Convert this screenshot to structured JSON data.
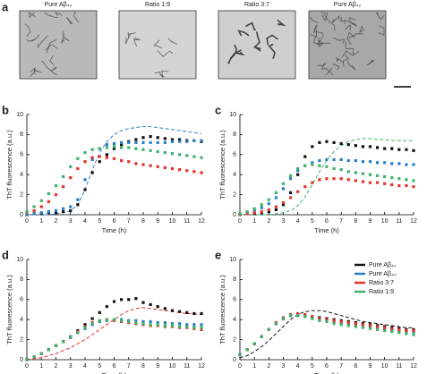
{
  "figure": {
    "panel": "a",
    "images": [
      {
        "label": "Pure Aβ₄₀"
      },
      {
        "label": "Ratio 1:9"
      },
      {
        "label": "Ratio 3:7"
      },
      {
        "label": "Pure Aβ₄₂"
      }
    ]
  },
  "chart_data": [
    {
      "type": "line",
      "panel": "b",
      "xlabel": "Time (h)",
      "ylabel": "ThT fluorescence (a.u.)",
      "xlim": [
        0,
        12
      ],
      "ylim": [
        0,
        10
      ],
      "xticks": [
        0,
        1,
        2,
        3,
        4,
        5,
        6,
        7,
        8,
        9,
        10,
        11,
        12
      ],
      "yticks": [
        0,
        2,
        4,
        6,
        8,
        10
      ],
      "x": [
        0,
        0.5,
        1,
        1.5,
        2,
        2.5,
        3,
        3.5,
        4,
        4.5,
        5,
        5.5,
        6,
        6.5,
        7,
        7.5,
        8,
        8.5,
        9,
        9.5,
        10,
        10.5,
        11,
        11.5,
        12
      ],
      "series": [
        {
          "name": "Pure Aβ₄₂",
          "color": "#111111",
          "values": [
            0,
            0.1,
            0.1,
            0.2,
            0.2,
            0.3,
            0.4,
            1.0,
            2.5,
            4.2,
            5.3,
            6.0,
            6.6,
            7.0,
            7.3,
            7.5,
            7.7,
            7.8,
            7.7,
            7.6,
            7.5,
            7.5,
            7.4,
            7.4,
            7.3
          ]
        },
        {
          "name": "Pure Aβ₄₀",
          "color": "#2a7fc6",
          "values": [
            0,
            0.1,
            0.2,
            0.3,
            0.4,
            0.6,
            0.8,
            1.5,
            3.5,
            5.5,
            6.6,
            7.0,
            7.1,
            7.2,
            7.2,
            7.2,
            7.2,
            7.2,
            7.2,
            7.2,
            7.3,
            7.3,
            7.3,
            7.4,
            7.4
          ]
        },
        {
          "name": "Ratio 3:7",
          "color": "#e8322b",
          "values": [
            0.2,
            0.4,
            0.8,
            1.3,
            2.0,
            2.8,
            3.7,
            4.6,
            5.3,
            5.7,
            5.8,
            5.7,
            5.6,
            5.4,
            5.3,
            5.1,
            5.0,
            4.9,
            4.8,
            4.7,
            4.6,
            4.5,
            4.4,
            4.3,
            4.2
          ]
        },
        {
          "name": "Ratio 1:9",
          "color": "#3db36a",
          "values": [
            0.3,
            0.8,
            1.4,
            2.1,
            2.9,
            3.8,
            4.8,
            5.6,
            6.2,
            6.5,
            6.6,
            6.7,
            6.8,
            6.7,
            6.7,
            6.6,
            6.5,
            6.4,
            6.3,
            6.2,
            6.1,
            6.0,
            5.9,
            5.8,
            5.7
          ]
        },
        {
          "color": "#2a7fc6",
          "style": "dashed",
          "values": [
            0,
            0,
            0,
            0,
            0.1,
            0.2,
            0.4,
            1.0,
            2.5,
            4.5,
            6.2,
            7.3,
            8.0,
            8.4,
            8.6,
            8.7,
            8.8,
            8.8,
            8.7,
            8.6,
            8.5,
            8.4,
            8.3,
            8.2,
            8.1
          ]
        }
      ]
    },
    {
      "type": "line",
      "panel": "c",
      "xlabel": "Time (h)",
      "ylabel": "ThT fluorescence (a.u.)",
      "xlim": [
        0,
        12
      ],
      "ylim": [
        0,
        10
      ],
      "xticks": [
        0,
        1,
        2,
        3,
        4,
        5,
        6,
        7,
        8,
        9,
        10,
        11,
        12
      ],
      "yticks": [
        0,
        2,
        4,
        6,
        8,
        10
      ],
      "x": [
        0,
        0.5,
        1,
        1.5,
        2,
        2.5,
        3,
        3.5,
        4,
        4.5,
        5,
        5.5,
        6,
        6.5,
        7,
        7.5,
        8,
        8.5,
        9,
        9.5,
        10,
        10.5,
        11,
        11.5,
        12
      ],
      "series": [
        {
          "name": "Pure Aβ₄₂",
          "color": "#111111",
          "values": [
            0,
            0.1,
            0.1,
            0.2,
            0.3,
            0.5,
            1.0,
            2.2,
            4.0,
            5.8,
            6.8,
            7.2,
            7.3,
            7.2,
            7.1,
            7.0,
            6.9,
            6.8,
            6.8,
            6.7,
            6.6,
            6.6,
            6.5,
            6.5,
            6.4
          ]
        },
        {
          "name": "Pure Aβ₄₀",
          "color": "#2a7fc6",
          "values": [
            0.1,
            0.2,
            0.4,
            0.7,
            1.1,
            1.7,
            2.6,
            3.6,
            4.4,
            4.9,
            5.2,
            5.4,
            5.5,
            5.5,
            5.5,
            5.4,
            5.4,
            5.3,
            5.3,
            5.2,
            5.2,
            5.1,
            5.1,
            5.0,
            5.0
          ]
        },
        {
          "name": "Ratio 3:7",
          "color": "#e8322b",
          "values": [
            0,
            0.1,
            0.2,
            0.3,
            0.5,
            0.8,
            1.2,
            1.7,
            2.3,
            2.8,
            3.2,
            3.5,
            3.6,
            3.6,
            3.6,
            3.5,
            3.4,
            3.3,
            3.2,
            3.2,
            3.1,
            3.0,
            2.9,
            2.9,
            2.8
          ]
        },
        {
          "name": "Ratio 1:9",
          "color": "#3db36a",
          "values": [
            0.1,
            0.3,
            0.6,
            1.0,
            1.5,
            2.2,
            3.1,
            3.9,
            4.6,
            4.9,
            5.0,
            4.9,
            4.8,
            4.6,
            4.5,
            4.3,
            4.2,
            4.1,
            4.0,
            3.9,
            3.8,
            3.7,
            3.6,
            3.5,
            3.4
          ]
        },
        {
          "color": "#3db36a",
          "style": "dashed",
          "values": [
            0,
            0,
            0,
            0,
            0,
            0.1,
            0.2,
            0.4,
            0.9,
            1.8,
            3.0,
            4.3,
            5.4,
            6.3,
            6.9,
            7.3,
            7.5,
            7.6,
            7.6,
            7.5,
            7.5,
            7.4,
            7.4,
            7.4,
            7.4
          ]
        }
      ]
    },
    {
      "type": "line",
      "panel": "d",
      "xlabel": "Time (h)",
      "ylabel": "ThT fluorescence (a.u.)",
      "xlim": [
        0,
        12
      ],
      "ylim": [
        0,
        10
      ],
      "xticks": [
        0,
        1,
        2,
        3,
        4,
        5,
        6,
        7,
        8,
        9,
        10,
        11,
        12
      ],
      "yticks": [
        0,
        2,
        4,
        6,
        8,
        10
      ],
      "x": [
        0,
        0.5,
        1,
        1.5,
        2,
        2.5,
        3,
        3.5,
        4,
        4.5,
        5,
        5.5,
        6,
        6.5,
        7,
        7.5,
        8,
        8.5,
        9,
        9.5,
        10,
        10.5,
        11,
        11.5,
        12
      ],
      "series": [
        {
          "name": "Pure Aβ₄₂",
          "color": "#111111",
          "values": [
            0,
            0.3,
            0.6,
            1.0,
            1.4,
            1.8,
            2.3,
            2.9,
            3.5,
            4.1,
            4.7,
            5.3,
            5.8,
            6.0,
            6.0,
            6.1,
            5.7,
            5.5,
            5.3,
            5.1,
            4.9,
            4.8,
            4.7,
            4.6,
            4.6
          ]
        },
        {
          "name": "Pure Aβ₄₀",
          "color": "#2a7fc6",
          "values": [
            0,
            0.3,
            0.6,
            1.0,
            1.4,
            1.8,
            2.2,
            2.7,
            3.1,
            3.5,
            3.8,
            3.9,
            4.0,
            4.0,
            3.9,
            3.9,
            3.8,
            3.8,
            3.7,
            3.7,
            3.6,
            3.6,
            3.5,
            3.5,
            3.5
          ]
        },
        {
          "name": "Ratio 3:7",
          "color": "#e8322b",
          "values": [
            0,
            0.3,
            0.6,
            1.0,
            1.4,
            1.8,
            2.3,
            2.8,
            3.3,
            3.7,
            3.9,
            4.0,
            3.9,
            3.8,
            3.7,
            3.6,
            3.5,
            3.4,
            3.4,
            3.3,
            3.3,
            3.2,
            3.2,
            3.1,
            3.0
          ]
        },
        {
          "name": "Ratio 1:9",
          "color": "#3db36a",
          "values": [
            0,
            0.3,
            0.6,
            1.0,
            1.4,
            1.8,
            2.3,
            2.7,
            3.2,
            3.6,
            3.9,
            4.0,
            4.0,
            3.9,
            3.8,
            3.7,
            3.6,
            3.5,
            3.5,
            3.4,
            3.4,
            3.3,
            3.3,
            3.2,
            3.2
          ]
        },
        {
          "color": "#e8322b",
          "style": "dashed",
          "values": [
            0,
            0.1,
            0.2,
            0.4,
            0.6,
            0.9,
            1.2,
            1.6,
            2.0,
            2.5,
            3.0,
            3.5,
            4.0,
            4.5,
            4.9,
            5.1,
            5.2,
            5.1,
            5.0,
            4.9,
            4.8,
            4.7,
            4.6,
            4.6,
            4.5
          ]
        }
      ]
    },
    {
      "type": "line",
      "panel": "e",
      "xlabel": "Time (h)",
      "ylabel": "ThT fluorescence (a.u.)",
      "legend": "upper right",
      "xlim": [
        0,
        12
      ],
      "ylim": [
        0,
        10
      ],
      "xticks": [
        0,
        1,
        2,
        3,
        4,
        5,
        6,
        7,
        8,
        9,
        10,
        11,
        12
      ],
      "yticks": [
        0,
        2,
        4,
        6,
        8,
        10
      ],
      "x": [
        0,
        0.5,
        1,
        1.5,
        2,
        2.5,
        3,
        3.5,
        4,
        4.5,
        5,
        5.5,
        6,
        6.5,
        7,
        7.5,
        8,
        8.5,
        9,
        9.5,
        10,
        10.5,
        11,
        11.5,
        12
      ],
      "series": [
        {
          "name": "Pure Aβ₄₂",
          "color": "#111111",
          "values": [
            0.5,
            1.0,
            1.6,
            2.3,
            3.0,
            3.6,
            4.1,
            4.4,
            4.5,
            4.4,
            4.3,
            4.2,
            4.1,
            4.0,
            3.9,
            3.8,
            3.7,
            3.6,
            3.5,
            3.4,
            3.3,
            3.2,
            3.1,
            3.0,
            3.0
          ]
        },
        {
          "name": "Pure Aβ₄₀",
          "color": "#2a7fc6",
          "values": [
            0.5,
            1.0,
            1.6,
            2.3,
            3.0,
            3.6,
            4.1,
            4.5,
            4.5,
            4.4,
            4.2,
            4.0,
            3.9,
            3.8,
            3.7,
            3.6,
            3.5,
            3.4,
            3.3,
            3.2,
            3.1,
            3.0,
            2.9,
            2.8,
            2.8
          ]
        },
        {
          "name": "Ratio 3:7",
          "color": "#e8322b",
          "values": [
            0.5,
            1.0,
            1.6,
            2.3,
            3.0,
            3.7,
            4.2,
            4.5,
            4.6,
            4.5,
            4.3,
            4.1,
            4.0,
            3.9,
            3.8,
            3.7,
            3.6,
            3.5,
            3.4,
            3.3,
            3.2,
            3.1,
            3.0,
            2.9,
            2.9
          ]
        },
        {
          "name": "Ratio 1:9",
          "color": "#3db36a",
          "values": [
            0.5,
            1.0,
            1.6,
            2.3,
            3.0,
            3.6,
            4.1,
            4.4,
            4.4,
            4.3,
            4.1,
            3.9,
            3.8,
            3.6,
            3.5,
            3.4,
            3.3,
            3.2,
            3.1,
            3.0,
            2.9,
            2.8,
            2.7,
            2.6,
            2.5
          ]
        },
        {
          "color": "#111111",
          "style": "dashed",
          "values": [
            0.2,
            0.4,
            0.8,
            1.3,
            1.9,
            2.6,
            3.3,
            4.0,
            4.5,
            4.8,
            4.9,
            4.9,
            4.8,
            4.6,
            4.4,
            4.2,
            4.0,
            3.8,
            3.7,
            3.6,
            3.5,
            3.4,
            3.3,
            3.2,
            3.2
          ]
        }
      ]
    }
  ]
}
